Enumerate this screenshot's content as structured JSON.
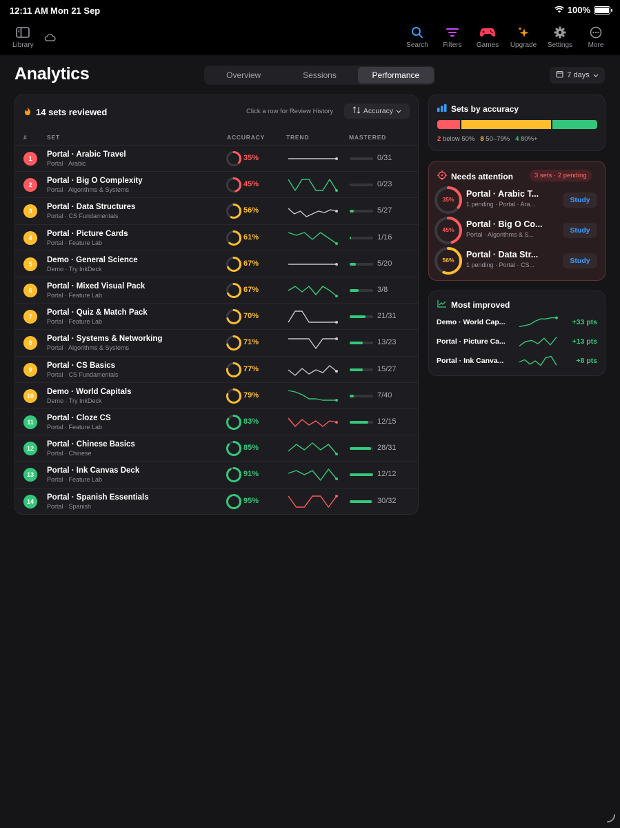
{
  "status_bar": {
    "time": "12:11 AM",
    "date": "Mon 21 Sep",
    "battery": "100%"
  },
  "toolbar": {
    "library": "Library",
    "items": [
      {
        "label": "Search",
        "icon": "search-icon",
        "color": "#3a9bff"
      },
      {
        "label": "Filters",
        "icon": "filters-icon",
        "color": "#c846ff"
      },
      {
        "label": "Games",
        "icon": "gamepad-icon",
        "color": "#ff3b5c"
      },
      {
        "label": "Upgrade",
        "icon": "sparkles-icon",
        "color": "#ff9f0a"
      },
      {
        "label": "Settings",
        "icon": "gear-icon",
        "color": "#9a9aa0"
      },
      {
        "label": "More",
        "icon": "more-icon",
        "color": "#9a9aa0"
      }
    ]
  },
  "header": {
    "title": "Analytics",
    "tabs": [
      "Overview",
      "Sessions",
      "Performance"
    ],
    "active_tab": "Performance",
    "range": "7 days"
  },
  "table": {
    "title": "14 sets reviewed",
    "hint": "Click a row for Review History",
    "sort_label": "Accuracy",
    "columns": {
      "num": "#",
      "set": "SET",
      "accuracy": "ACCURACY",
      "trend": "TREND",
      "mastered": "MASTERED"
    },
    "rows": [
      {
        "rank": "1",
        "name": "Portal · Arabic Travel",
        "sub": "Portal · Arabic",
        "accuracy": 35,
        "mastered": "0/31",
        "mastered_frac": 0,
        "trend": [
          5,
          5,
          5,
          5,
          5,
          5,
          5,
          5
        ]
      },
      {
        "rank": "2",
        "name": "Portal · Big O Complexity",
        "sub": "Portal · Algorithms & Systems",
        "accuracy": 45,
        "mastered": "0/23",
        "mastered_frac": 0,
        "trend": [
          9,
          1,
          9,
          9,
          1,
          1,
          9,
          1
        ]
      },
      {
        "rank": "3",
        "name": "Portal · Data Structures",
        "sub": "Portal · CS Fundamentals",
        "accuracy": 56,
        "mastered": "5/27",
        "mastered_frac": 0.185,
        "trend": [
          7,
          3,
          5,
          1,
          3,
          5,
          4,
          6,
          5
        ]
      },
      {
        "rank": "4",
        "name": "Portal · Picture Cards",
        "sub": "Portal · Feature Lab",
        "accuracy": 61,
        "mastered": "1/16",
        "mastered_frac": 0.0625,
        "trend": [
          9,
          7,
          9,
          4,
          9,
          5,
          1
        ]
      },
      {
        "rank": "5",
        "name": "Demo · General Science",
        "sub": "Demo · Try InkDeck",
        "accuracy": 67,
        "mastered": "5/20",
        "mastered_frac": 0.25,
        "trend": [
          5,
          5,
          5,
          5,
          5,
          5,
          5,
          5
        ]
      },
      {
        "rank": "6",
        "name": "Portal · Mixed Visual Pack",
        "sub": "Portal · Feature Lab",
        "accuracy": 67,
        "mastered": "3/8",
        "mastered_frac": 0.375,
        "trend": [
          5,
          8,
          4,
          8,
          2,
          8,
          5,
          1
        ]
      },
      {
        "rank": "7",
        "name": "Portal · Quiz & Match Pack",
        "sub": "Portal · Feature Lab",
        "accuracy": 70,
        "mastered": "21/31",
        "mastered_frac": 0.677,
        "trend": [
          1,
          9,
          9,
          1,
          1,
          1,
          1,
          1
        ]
      },
      {
        "rank": "8",
        "name": "Portal · Systems & Networking",
        "sub": "Portal · Algorithms & Systems",
        "accuracy": 71,
        "mastered": "13/23",
        "mastered_frac": 0.565,
        "trend": [
          8,
          8,
          8,
          8,
          1,
          8,
          8,
          8
        ]
      },
      {
        "rank": "9",
        "name": "Portal · CS Basics",
        "sub": "Portal · CS Fundamentals",
        "accuracy": 77,
        "mastered": "15/27",
        "mastered_frac": 0.556,
        "trend": [
          5,
          1,
          6,
          2,
          5,
          3,
          8,
          4
        ]
      },
      {
        "rank": "10",
        "name": "Demo · World Capitals",
        "sub": "Demo · Try InkDeck",
        "accuracy": 79,
        "mastered": "7/40",
        "mastered_frac": 0.175,
        "trend": [
          9,
          8,
          6,
          3,
          3,
          2,
          2,
          2
        ]
      },
      {
        "rank": "11",
        "name": "Portal · Cloze CS",
        "sub": "Portal · Feature Lab",
        "accuracy": 83,
        "mastered": "12/15",
        "mastered_frac": 0.8,
        "trend": [
          8,
          2,
          7,
          3,
          6,
          2,
          6,
          5
        ]
      },
      {
        "rank": "12",
        "name": "Portal · Chinese Basics",
        "sub": "Portal · Chinese",
        "accuracy": 85,
        "mastered": "28/31",
        "mastered_frac": 0.903,
        "trend": [
          3,
          8,
          4,
          9,
          4,
          8,
          1
        ]
      },
      {
        "rank": "13",
        "name": "Portal · Ink Canvas Deck",
        "sub": "Portal · Feature Lab",
        "accuracy": 91,
        "mastered": "12/12",
        "mastered_frac": 1,
        "trend": [
          6,
          8,
          5,
          8,
          1,
          9,
          2
        ]
      },
      {
        "rank": "14",
        "name": "Portal · Spanish Essentials",
        "sub": "Portal · Spanish",
        "accuracy": 95,
        "mastered": "30/32",
        "mastered_frac": 0.9375,
        "trend": [
          9,
          1,
          1,
          9,
          9,
          1,
          9
        ]
      }
    ]
  },
  "accuracy_card": {
    "title": "Sets by accuracy",
    "below_count": "2",
    "below_label": "below 50%",
    "mid_count": "8",
    "mid_label": "50–79%",
    "high_count": "4",
    "high_label": "80%+",
    "segments": [
      {
        "share": 2,
        "color": "#ff5a5f"
      },
      {
        "share": 8,
        "color": "#ffbd2e"
      },
      {
        "share": 4,
        "color": "#34c77b"
      }
    ]
  },
  "attention_card": {
    "title": "Needs attention",
    "badge": "3 sets · 2 pending",
    "study_label": "Study",
    "items": [
      {
        "name": "Portal · Arabic T...",
        "sub": "1 pending · Portal · Ara...",
        "accuracy": 35,
        "pct": "35%"
      },
      {
        "name": "Portal · Big O Co...",
        "sub": "Portal · Algorithms & S...",
        "accuracy": 45,
        "pct": "45%"
      },
      {
        "name": "Portal · Data Str...",
        "sub": "1 pending · Portal · CS...",
        "accuracy": 56,
        "pct": "56%"
      }
    ]
  },
  "improved_card": {
    "title": "Most improved",
    "items": [
      {
        "name": "Demo · World Cap...",
        "delta": "+33 pts",
        "trend": [
          1,
          2,
          3,
          6,
          8,
          8,
          9,
          9
        ]
      },
      {
        "name": "Portal · Picture Ca...",
        "delta": "+13 pts",
        "trend": [
          1,
          5,
          6,
          3,
          8,
          2,
          9
        ]
      },
      {
        "name": "Portal · Ink Canva...",
        "delta": "+8 pts",
        "trend": [
          4,
          6,
          2,
          5,
          1,
          8,
          9,
          1
        ]
      }
    ]
  },
  "colors": {
    "red": "#ff5a5f",
    "yellow": "#ffbd2e",
    "green": "#34c77b",
    "blue": "#3a9bff",
    "track": "#3a3a40",
    "trend_gray": "#c8c8cc"
  }
}
